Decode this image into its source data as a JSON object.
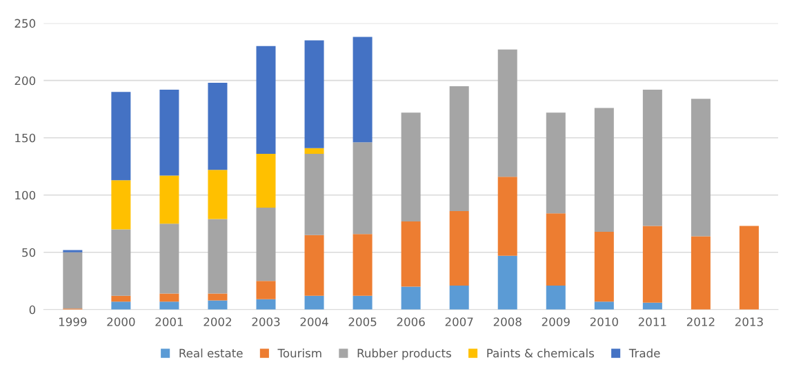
{
  "chart_data": {
    "type": "bar",
    "stacked": true,
    "categories": [
      "1999",
      "2000",
      "2001",
      "2002",
      "2003",
      "2004",
      "2005",
      "2006",
      "2007",
      "2008",
      "2009",
      "2010",
      "2011",
      "2012",
      "2013"
    ],
    "series": [
      {
        "name": "Real estate",
        "color": "#5b9bd5",
        "values": [
          null,
          7,
          7,
          8,
          9,
          12,
          12,
          20,
          21,
          47,
          21,
          7,
          6,
          null,
          null
        ]
      },
      {
        "name": "Tourism",
        "color": "#ed7d31",
        "values": [
          1,
          5,
          7,
          6,
          16,
          53,
          54,
          57,
          65,
          69,
          63,
          61,
          67,
          64,
          73
        ]
      },
      {
        "name": "Rubber products",
        "color": "#a5a5a5",
        "values": [
          49,
          58,
          61,
          65,
          64,
          71,
          80,
          95,
          109,
          111,
          88,
          108,
          119,
          120,
          null
        ]
      },
      {
        "name": "Paints & chemicals",
        "color": "#ffc000",
        "values": [
          null,
          43,
          42,
          43,
          47,
          5,
          null,
          null,
          null,
          null,
          null,
          null,
          null,
          null,
          null
        ]
      },
      {
        "name": "Trade",
        "color": "#4472c4",
        "values": [
          2,
          77,
          75,
          76,
          94,
          94,
          92,
          null,
          null,
          null,
          null,
          null,
          null,
          null,
          null
        ]
      }
    ],
    "ylim": [
      0,
      250
    ],
    "yticks": [
      0,
      50,
      100,
      150,
      200,
      250
    ],
    "grid": "y",
    "legend": "bottom"
  }
}
